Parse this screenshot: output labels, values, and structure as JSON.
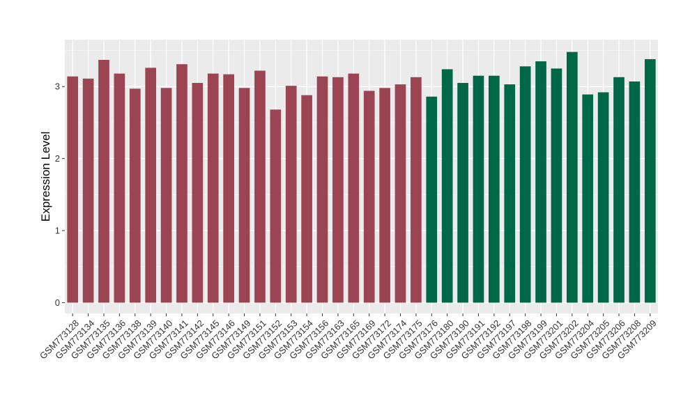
{
  "chart_data": {
    "type": "bar",
    "ylabel": "Expression Level",
    "xlabel": "",
    "ylim": [
      -0.15,
      3.65
    ],
    "yticks": [
      0,
      1,
      2,
      3
    ],
    "grid": true,
    "background": "#ebebeb",
    "categories": [
      "GSM773128",
      "GSM773134",
      "GSM773135",
      "GSM773136",
      "GSM773138",
      "GSM773139",
      "GSM773140",
      "GSM773141",
      "GSM773142",
      "GSM773145",
      "GSM773146",
      "GSM773149",
      "GSM773151",
      "GSM773152",
      "GSM773153",
      "GSM773154",
      "GSM773156",
      "GSM773163",
      "GSM773165",
      "GSM773169",
      "GSM773172",
      "GSM773174",
      "GSM773175",
      "GSM773176",
      "GSM773180",
      "GSM773190",
      "GSM773191",
      "GSM773192",
      "GSM773197",
      "GSM773198",
      "GSM773199",
      "GSM773201",
      "GSM773202",
      "GSM773204",
      "GSM773205",
      "GSM773206",
      "GSM773208",
      "GSM773209"
    ],
    "values": [
      3.14,
      3.11,
      3.37,
      3.18,
      2.97,
      3.26,
      2.98,
      3.31,
      3.05,
      3.18,
      3.17,
      2.98,
      3.22,
      2.68,
      3.01,
      2.88,
      3.14,
      3.13,
      3.18,
      2.94,
      2.98,
      3.03,
      3.13,
      2.86,
      3.24,
      3.05,
      3.15,
      3.15,
      3.03,
      3.28,
      3.35,
      3.25,
      3.48,
      2.89,
      2.92,
      3.13,
      3.07,
      3.38
    ],
    "group_colors": [
      "#9b4452",
      "#9b4452",
      "#9b4452",
      "#9b4452",
      "#9b4452",
      "#9b4452",
      "#9b4452",
      "#9b4452",
      "#9b4452",
      "#9b4452",
      "#9b4452",
      "#9b4452",
      "#9b4452",
      "#9b4452",
      "#9b4452",
      "#9b4452",
      "#9b4452",
      "#9b4452",
      "#9b4452",
      "#9b4452",
      "#9b4452",
      "#9b4452",
      "#9b4452",
      "#006846",
      "#006846",
      "#006846",
      "#006846",
      "#006846",
      "#006846",
      "#006846",
      "#006846",
      "#006846",
      "#006846",
      "#006846",
      "#006846",
      "#006846",
      "#006846",
      "#006846"
    ]
  }
}
